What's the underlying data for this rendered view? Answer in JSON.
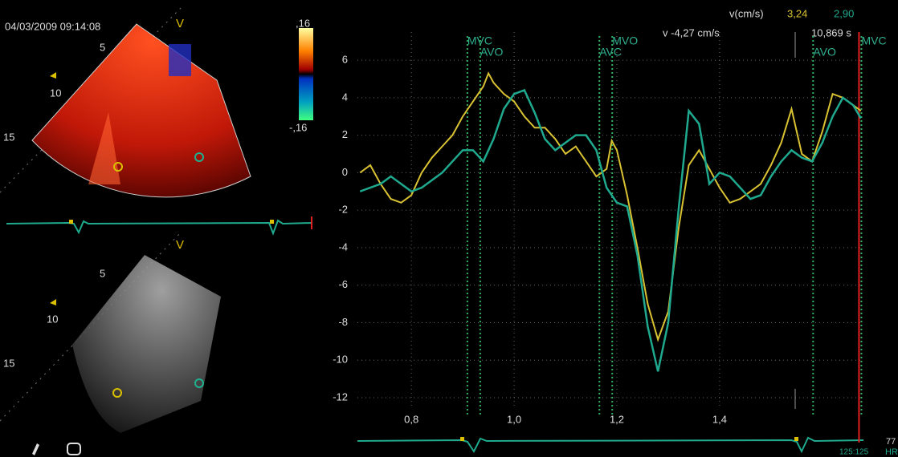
{
  "ui": {
    "timestamp": "04/03/2009 09:14:08",
    "top_view": {
      "label": "V",
      "depths": [
        "5",
        "10",
        "15"
      ],
      "scale_max": ",16",
      "scale_min": "-,16"
    },
    "bottom_view": {
      "label": "V",
      "depths": [
        "5",
        "10",
        "15"
      ]
    },
    "readout": {
      "unit": "v(cm/s)",
      "value_a": "3,24",
      "value_b": "2,90",
      "cursor_velocity": "v -4,27 cm/s",
      "cursor_time": "10,869 s"
    },
    "footer": {
      "heart_rate": "77",
      "hr_label": "HR",
      "ratio": "125:125"
    }
  },
  "chart_data": {
    "type": "line",
    "x": [
      0.7,
      0.72,
      0.74,
      0.76,
      0.78,
      0.8,
      0.82,
      0.84,
      0.86,
      0.88,
      0.9,
      0.92,
      0.94,
      0.95,
      0.96,
      0.98,
      1.0,
      1.02,
      1.04,
      1.06,
      1.08,
      1.1,
      1.12,
      1.14,
      1.16,
      1.18,
      1.19,
      1.2,
      1.22,
      1.24,
      1.26,
      1.28,
      1.3,
      1.32,
      1.34,
      1.36,
      1.38,
      1.4,
      1.42,
      1.44,
      1.46,
      1.48,
      1.5,
      1.52,
      1.54,
      1.56,
      1.58,
      1.6,
      1.62,
      1.64,
      1.66,
      1.675
    ],
    "series": [
      {
        "color": "#d9c232",
        "values": [
          0,
          0.4,
          -0.6,
          -1.4,
          -1.6,
          -1.2,
          0,
          0.8,
          1.4,
          2.0,
          3.0,
          3.8,
          4.6,
          5.3,
          4.8,
          4.2,
          3.8,
          3.0,
          2.4,
          2.4,
          1.8,
          1.0,
          1.4,
          0.6,
          -0.2,
          0.2,
          1.7,
          1.2,
          -1.2,
          -4.0,
          -7.0,
          -8.9,
          -7.4,
          -3.0,
          0.4,
          1.2,
          0.2,
          -0.8,
          -1.6,
          -1.4,
          -1.0,
          -0.6,
          0.4,
          1.6,
          3.4,
          1.0,
          0.6,
          2.2,
          4.2,
          4.0,
          3.6,
          3.3
        ]
      },
      {
        "color": "#1fa98e",
        "values": [
          -1.0,
          -0.8,
          -0.6,
          -0.2,
          -0.6,
          -1.0,
          -0.8,
          -0.4,
          0,
          0.6,
          1.2,
          1.2,
          0.6,
          1.2,
          1.8,
          3.4,
          4.2,
          4.4,
          3.2,
          1.8,
          1.2,
          1.6,
          2.0,
          2.0,
          1.2,
          -0.8,
          -1.2,
          -1.6,
          -1.8,
          -4.4,
          -8.2,
          -10.6,
          -8.0,
          -2.0,
          3.3,
          2.6,
          -0.6,
          0,
          -0.2,
          -0.8,
          -1.4,
          -1.2,
          -0.2,
          0.6,
          1.2,
          0.8,
          0.6,
          1.6,
          3.0,
          4.0,
          3.6,
          2.9
        ]
      }
    ],
    "events": [
      {
        "label": "MVC",
        "x": 0.909
      },
      {
        "label": "AVO",
        "x": 0.934
      },
      {
        "label": "AVC",
        "x": 1.166
      },
      {
        "label": "MVO",
        "x": 1.191
      },
      {
        "label": "AVO",
        "x": 1.582
      },
      {
        "label": "MVC",
        "x": 1.676
      }
    ],
    "xlim": [
      0.695,
      1.68
    ],
    "ylim": [
      -12.6,
      7.5
    ],
    "xticks": [
      {
        "value": 0.8,
        "label": "0,8"
      },
      {
        "value": 1.0,
        "label": "1,0"
      },
      {
        "value": 1.2,
        "label": "1,2"
      },
      {
        "value": 1.4,
        "label": "1,4"
      }
    ],
    "yticks": [
      6,
      4,
      2,
      0,
      -2,
      -4,
      -6,
      -8,
      -10,
      -12
    ],
    "grid": true
  }
}
